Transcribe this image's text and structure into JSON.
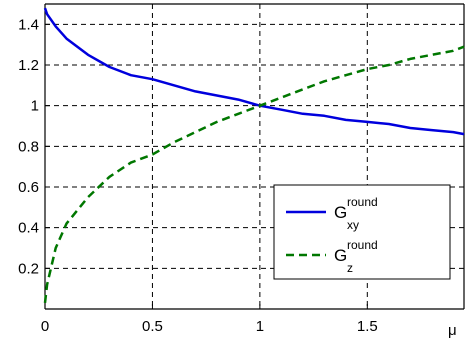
{
  "chart_data": {
    "type": "line",
    "title": "",
    "xlabel": "μ",
    "ylabel": "",
    "xlim": [
      0,
      1.95
    ],
    "ylim": [
      0,
      1.5
    ],
    "x_ticks": [
      0,
      0.5,
      1,
      1.5
    ],
    "x_tick_labels": [
      "0",
      "0.5",
      "1",
      "1.5"
    ],
    "y_ticks": [
      0.2,
      0.4,
      0.6,
      0.8,
      1.0,
      1.2,
      1.4
    ],
    "y_tick_labels": [
      "0.2",
      "0.4",
      "0.6",
      "0.8",
      "1",
      "1.2",
      "1.4"
    ],
    "grid": true,
    "legend_position": "lower-right",
    "x": [
      0.0,
      0.01,
      0.05,
      0.1,
      0.2,
      0.3,
      0.4,
      0.5,
      0.6,
      0.7,
      0.8,
      0.9,
      1.0,
      1.1,
      1.2,
      1.3,
      1.4,
      1.5,
      1.6,
      1.7,
      1.8,
      1.9,
      1.95
    ],
    "series": [
      {
        "name_main": "G",
        "name_sup": "round",
        "name_sub": "xy",
        "color": "#0000dd",
        "style": "solid",
        "values": [
          1.48,
          1.45,
          1.39,
          1.33,
          1.25,
          1.19,
          1.15,
          1.13,
          1.1,
          1.07,
          1.05,
          1.03,
          1.0,
          0.98,
          0.96,
          0.95,
          0.93,
          0.92,
          0.91,
          0.89,
          0.88,
          0.87,
          0.86
        ]
      },
      {
        "name_main": "G",
        "name_sup": "round",
        "name_sub": "z",
        "color": "#007700",
        "style": "dashed",
        "values": [
          0.03,
          0.12,
          0.3,
          0.42,
          0.55,
          0.65,
          0.72,
          0.76,
          0.82,
          0.87,
          0.92,
          0.96,
          1.0,
          1.04,
          1.08,
          1.12,
          1.15,
          1.18,
          1.2,
          1.23,
          1.25,
          1.27,
          1.29
        ]
      }
    ]
  }
}
